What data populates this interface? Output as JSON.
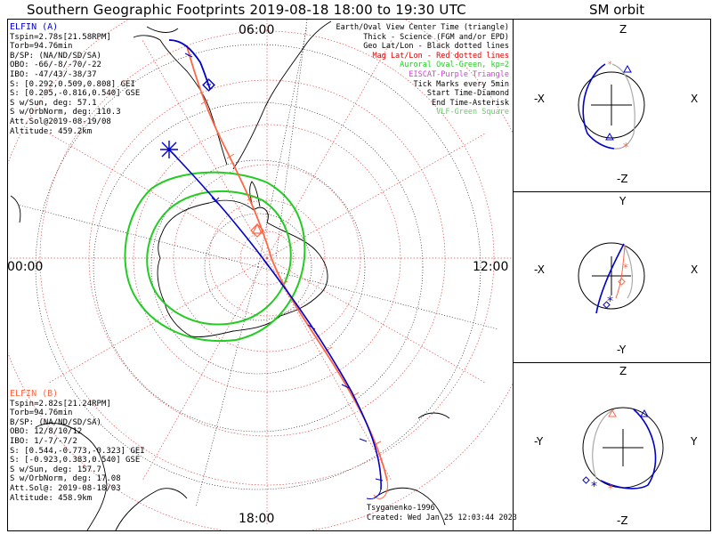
{
  "title": "Southern Geographic Footprints 2019-08-18 18:00 to 19:30 UTC",
  "sm_title": "SM orbit",
  "map": {
    "hour_labels": {
      "top": "06:00",
      "left": "00:00",
      "right": "12:00",
      "bottom": "18:00"
    }
  },
  "legend": [
    {
      "text": "Earth/Oval View Center Time (triangle)",
      "color": "#000000"
    },
    {
      "text": "Thick - Science (FGM and/or EPD)",
      "color": "#000000"
    },
    {
      "text": "Geo Lat/Lon - Black dotted lines",
      "color": "#000000"
    },
    {
      "text": "Mag Lat/Lon - Red dotted lines",
      "color": "#e00000"
    },
    {
      "text": "Auroral Oval-Green, kp=2",
      "color": "#22cc22"
    },
    {
      "text": "EISCAT-Purple Triangle",
      "color": "#cc44cc"
    },
    {
      "text": "Tick Marks every 5min",
      "color": "#000000"
    },
    {
      "text": "Start Time-Diamond",
      "color": "#000000"
    },
    {
      "text": "End Time-Asterisk",
      "color": "#000000"
    },
    {
      "text": "VLF-Green Square",
      "color": "#66cc66"
    }
  ],
  "elfin_a": {
    "name": "ELFIN (A)",
    "color": "#0000cc",
    "lines": [
      "Tspin=2.78s[21.58RPM]",
      "Torb=94.76min",
      "B/SP: (NA/ND/SD/SA)",
      "OBO: -66/-8/-70/-22",
      "IBO: -47/43/-38/37",
      "S: [0.292,0.509,0.808] GEI",
      "S: [0.205,-0.816,0.540] GSE",
      "S w/Sun, deg: 57.1",
      "S w/OrbNorm, deg: 110.3",
      "Att.Sol@2019-08-19/08",
      "Altitude: 459.2km"
    ]
  },
  "elfin_b": {
    "name": "ELFIN (B)",
    "color": "#ff6644",
    "lines": [
      "Tspin=2.82s[21.24RPM]",
      "Torb=94.76min",
      "B/SP: (NA/ND/SD/SA)",
      "OBO: 12/8/10/12",
      "IBO: 1/-7/-7/2",
      "S: [0.544,-0.773,-0.323] GEI",
      "S: [-0.923,0.383,0.540] GSE",
      "S w/Sun, deg: 157.7",
      "S w/OrbNorm, deg: 17.08",
      "Att.Sol@: 2019-08-18/03",
      "Altitude: 458.9km"
    ]
  },
  "credit": {
    "author": "Tsyganenko-1996",
    "created": "Created: Wed Jan 25 12:03:44 2023"
  },
  "sm_panels": [
    {
      "top": "Z",
      "bottom": "-Z",
      "left": "-X",
      "right": "X"
    },
    {
      "top": "Y",
      "bottom": "-Y",
      "left": "-X",
      "right": "X"
    },
    {
      "top": "Z",
      "bottom": "-Z",
      "left": "-Y",
      "right": "Y"
    }
  ],
  "colors": {
    "elfin_a": "#0000cc",
    "elfin_b": "#ff6644",
    "mag_grid": "#e05050",
    "auroral_oval": "#22cc22"
  }
}
